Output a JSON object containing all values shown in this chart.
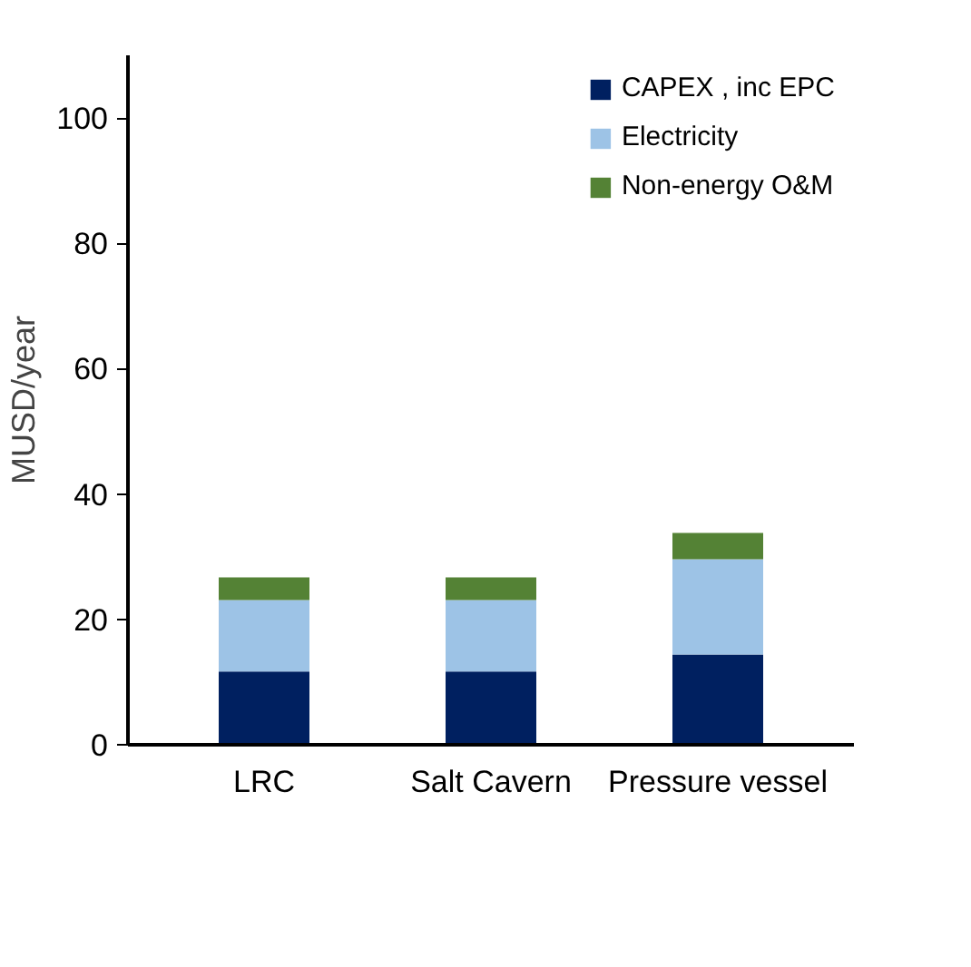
{
  "chart_data": {
    "type": "bar",
    "stacked": true,
    "ylabel": "MUSD/year",
    "categories": [
      "LRC",
      "Salt Cavern",
      "Pressure vessel"
    ],
    "series": [
      {
        "name": "CAPEX , inc EPC",
        "color": "#002060",
        "values": [
          11.7,
          11.7,
          14.4
        ]
      },
      {
        "name": "Electricity",
        "color": "#9dc3e6",
        "values": [
          11.4,
          11.4,
          15.2
        ]
      },
      {
        "name": "Non-energy O&M",
        "color": "#548235",
        "values": [
          3.6,
          3.6,
          4.2
        ]
      }
    ],
    "ylim": [
      0,
      110
    ],
    "yticks": [
      0,
      20,
      40,
      60,
      80,
      100
    ],
    "grid": false,
    "legend": "top right"
  }
}
